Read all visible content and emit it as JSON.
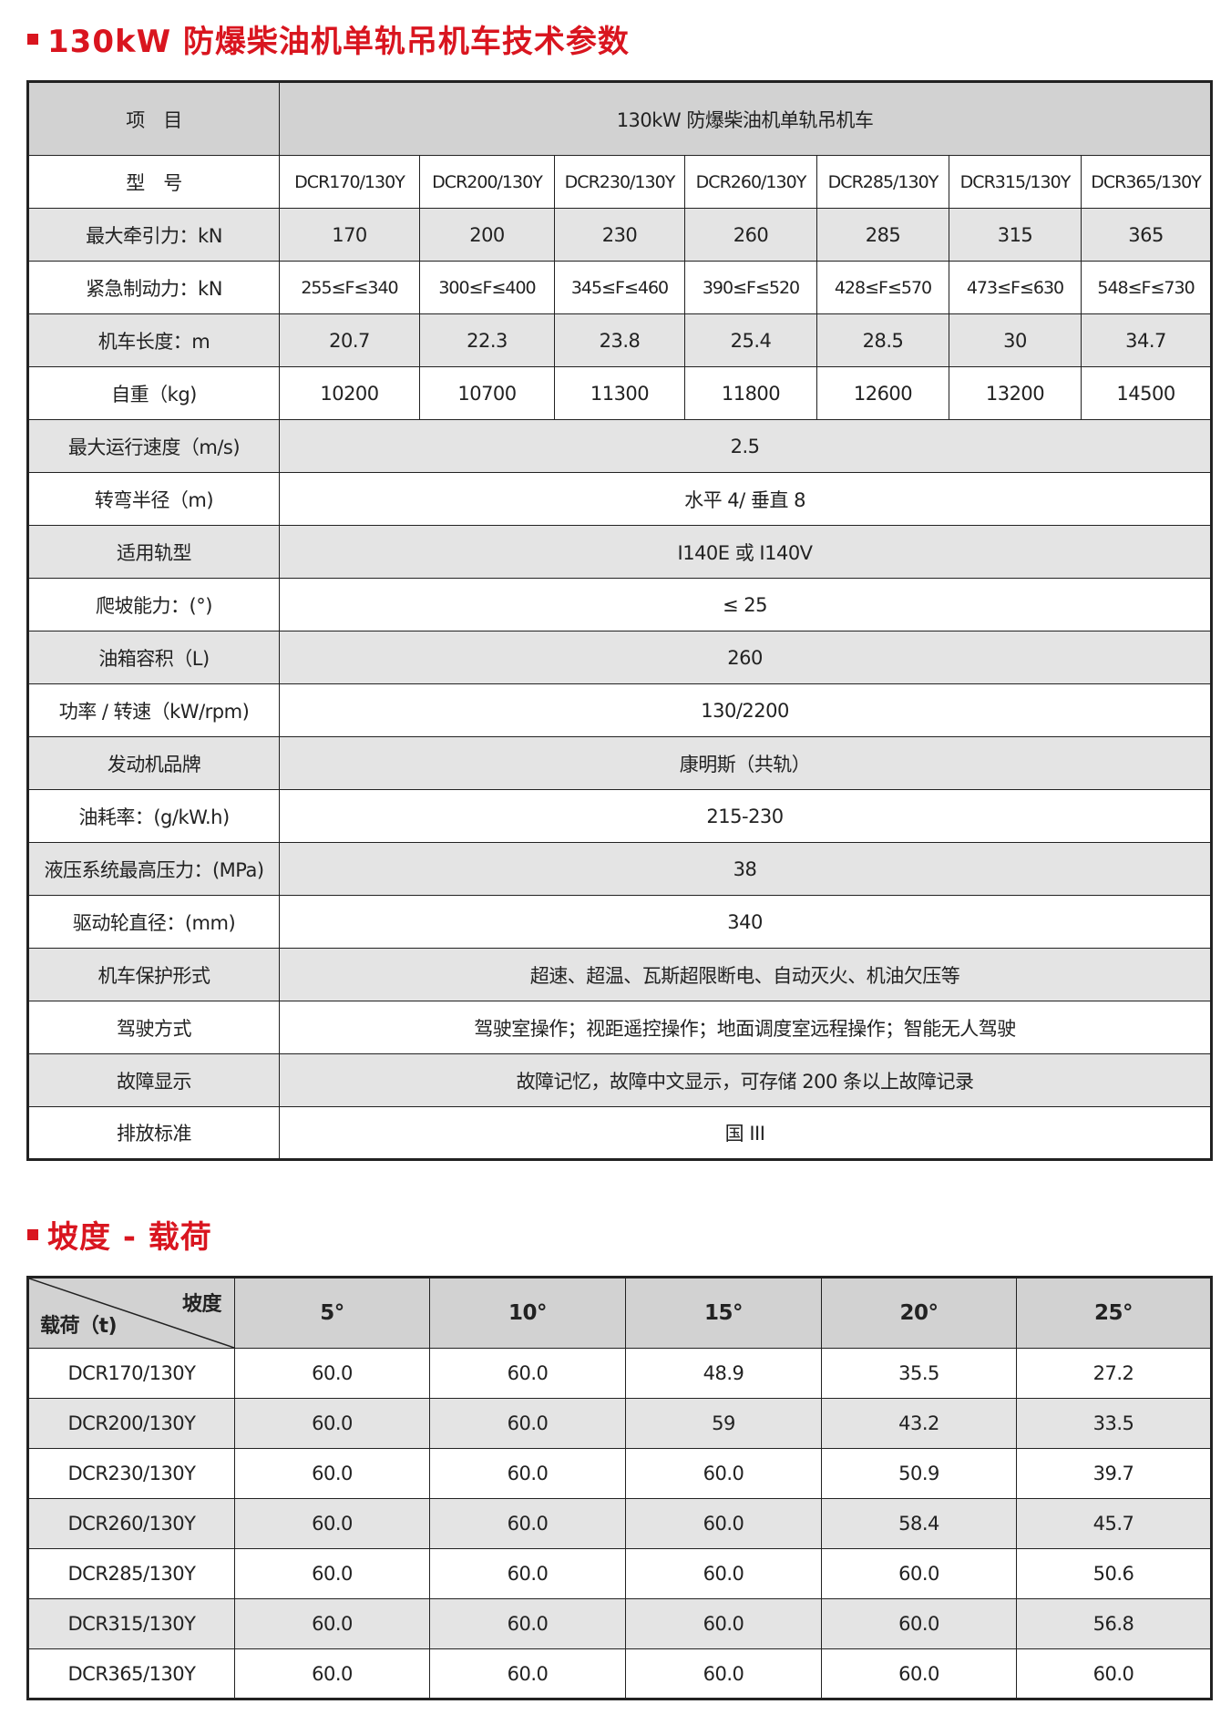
{
  "section1": {
    "title": "130kW 防爆柴油机单轨吊机车技术参数",
    "header_item": "项　目",
    "header_product": "130kW 防爆柴油机单轨吊机车",
    "model_label": "型　号",
    "models": [
      "DCR170/130Y",
      "DCR200/130Y",
      "DCR230/130Y",
      "DCR260/130Y",
      "DCR285/130Y",
      "DCR315/130Y",
      "DCR365/130Y"
    ],
    "per_model_rows": [
      {
        "label": "最大牵引力：kN",
        "values": [
          "170",
          "200",
          "230",
          "260",
          "285",
          "315",
          "365"
        ]
      },
      {
        "label": "紧急制动力：kN",
        "values": [
          "255≤F≤340",
          "300≤F≤400",
          "345≤F≤460",
          "390≤F≤520",
          "428≤F≤570",
          "473≤F≤630",
          "548≤F≤730"
        ]
      },
      {
        "label": "机车长度：m",
        "values": [
          "20.7",
          "22.3",
          "23.8",
          "25.4",
          "28.5",
          "30",
          "34.7"
        ]
      },
      {
        "label": "自重（kg)",
        "values": [
          "10200",
          "10700",
          "11300",
          "11800",
          "12600",
          "13200",
          "14500"
        ]
      }
    ],
    "shared_rows": [
      {
        "label": "最大运行速度（m/s)",
        "value": "2.5"
      },
      {
        "label": "转弯半径（m)",
        "value": "水平 4/ 垂直 8"
      },
      {
        "label": "适用轨型",
        "value": "I140E 或 I140V"
      },
      {
        "label": "爬坡能力：(°)",
        "value": "≤ 25"
      },
      {
        "label": "油箱容积（L)",
        "value": "260"
      },
      {
        "label": "功率 / 转速（kW/rpm)",
        "value": "130/2200"
      },
      {
        "label": "发动机品牌",
        "value": "康明斯（共轨）"
      },
      {
        "label": "油耗率：(g/kW.h)",
        "value": "215-230"
      },
      {
        "label": "液压系统最高压力：(MPa)",
        "value": "38"
      },
      {
        "label": "驱动轮直径：(mm)",
        "value": "340"
      },
      {
        "label": "机车保护形式",
        "value": "超速、超温、瓦斯超限断电、自动灭火、机油欠压等"
      },
      {
        "label": "驾驶方式",
        "value": "驾驶室操作；视距遥控操作；地面调度室远程操作；智能无人驾驶"
      },
      {
        "label": "故障显示",
        "value": "故障记忆，故障中文显示，可存储 200 条以上故障记录"
      },
      {
        "label": "排放标准",
        "value": "国 III"
      }
    ]
  },
  "section2": {
    "title": "坡度 - 载荷",
    "corner_top": "坡度",
    "corner_bottom": "载荷（t)",
    "slopes": [
      "5°",
      "10°",
      "15°",
      "20°",
      "25°"
    ],
    "rows": [
      {
        "model": "DCR170/130Y",
        "values": [
          "60.0",
          "60.0",
          "48.9",
          "35.5",
          "27.2"
        ]
      },
      {
        "model": "DCR200/130Y",
        "values": [
          "60.0",
          "60.0",
          "59",
          "43.2",
          "33.5"
        ]
      },
      {
        "model": "DCR230/130Y",
        "values": [
          "60.0",
          "60.0",
          "60.0",
          "50.9",
          "39.7"
        ]
      },
      {
        "model": "DCR260/130Y",
        "values": [
          "60.0",
          "60.0",
          "60.0",
          "58.4",
          "45.7"
        ]
      },
      {
        "model": "DCR285/130Y",
        "values": [
          "60.0",
          "60.0",
          "60.0",
          "60.0",
          "50.6"
        ]
      },
      {
        "model": "DCR315/130Y",
        "values": [
          "60.0",
          "60.0",
          "60.0",
          "60.0",
          "56.8"
        ]
      },
      {
        "model": "DCR365/130Y",
        "values": [
          "60.0",
          "60.0",
          "60.0",
          "60.0",
          "60.0"
        ]
      }
    ]
  },
  "colors": {
    "accent": "#d9151f",
    "header_bg": "#d2d2d2",
    "stripe_bg": "#e4e4e4"
  }
}
